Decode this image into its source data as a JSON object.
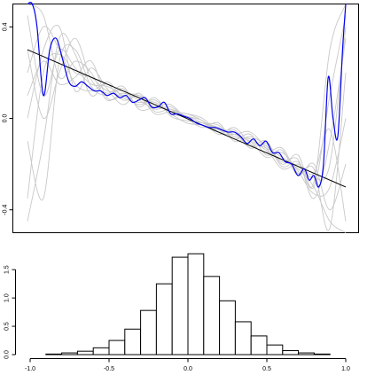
{
  "chart_data": [
    {
      "type": "line",
      "title": "",
      "xlabel": "",
      "ylabel": "",
      "xlim": [
        -1.0,
        1.0
      ],
      "ylim": [
        -0.5,
        0.5
      ],
      "grid": false,
      "y_ticks": [
        {
          "value": -0.4,
          "label": "-0.4"
        },
        {
          "value": 0.0,
          "label": "0.0"
        },
        {
          "value": 0.4,
          "label": "0.4"
        }
      ],
      "colors": {
        "fit": "#0000ee",
        "reference": "#000000",
        "samples": "#c8c8c8"
      },
      "reference_line": {
        "x": [
          -1.0,
          1.0
        ],
        "y": [
          0.3,
          -0.3
        ]
      },
      "fit_curve": {
        "x": [
          -1.0,
          -0.97,
          -0.94,
          -0.9,
          -0.86,
          -0.82,
          -0.78,
          -0.74,
          -0.7,
          -0.66,
          -0.62,
          -0.58,
          -0.54,
          -0.5,
          -0.46,
          -0.42,
          -0.38,
          -0.34,
          -0.3,
          -0.26,
          -0.22,
          -0.18,
          -0.14,
          -0.1,
          -0.06,
          -0.02,
          0.02,
          0.06,
          0.1,
          0.14,
          0.18,
          0.22,
          0.26,
          0.3,
          0.34,
          0.38,
          0.42,
          0.46,
          0.5,
          0.54,
          0.58,
          0.62,
          0.66,
          0.7,
          0.74,
          0.77,
          0.8,
          0.83,
          0.86,
          0.89,
          0.92,
          0.95,
          0.98,
          1.0
        ],
        "y": [
          0.5,
          0.52,
          0.4,
          0.1,
          0.3,
          0.35,
          0.26,
          0.16,
          0.14,
          0.16,
          0.14,
          0.12,
          0.12,
          0.1,
          0.11,
          0.09,
          0.1,
          0.07,
          0.08,
          0.09,
          0.05,
          0.05,
          0.07,
          0.02,
          0.02,
          0.01,
          0.0,
          -0.02,
          -0.03,
          -0.04,
          -0.04,
          -0.05,
          -0.06,
          -0.06,
          -0.08,
          -0.11,
          -0.09,
          -0.12,
          -0.1,
          -0.15,
          -0.15,
          -0.19,
          -0.2,
          -0.25,
          -0.22,
          -0.27,
          -0.25,
          -0.3,
          -0.2,
          0.18,
          0.0,
          -0.08,
          0.3,
          0.5
        ]
      },
      "sample_curves": [
        {
          "x": [
            -1.0,
            -0.9,
            -0.8,
            -0.7,
            -0.6,
            -0.5,
            -0.4,
            -0.3,
            -0.2,
            -0.1,
            0.0,
            0.1,
            0.2,
            0.3,
            0.4,
            0.5,
            0.6,
            0.7,
            0.8,
            0.9,
            1.0
          ],
          "y": [
            0.45,
            0.1,
            0.3,
            0.22,
            0.15,
            0.14,
            0.1,
            0.06,
            0.08,
            0.02,
            0.01,
            -0.02,
            -0.05,
            -0.07,
            -0.1,
            -0.13,
            -0.17,
            -0.21,
            -0.26,
            -0.2,
            0.4
          ]
        },
        {
          "x": [
            -1.0,
            -0.9,
            -0.8,
            -0.7,
            -0.6,
            -0.5,
            -0.4,
            -0.3,
            -0.2,
            -0.1,
            0.0,
            0.1,
            0.2,
            0.3,
            0.4,
            0.5,
            0.6,
            0.7,
            0.8,
            0.9,
            1.0
          ],
          "y": [
            -0.35,
            0.2,
            0.28,
            0.2,
            0.18,
            0.12,
            0.12,
            0.09,
            0.05,
            0.04,
            0.0,
            -0.03,
            -0.04,
            -0.08,
            -0.09,
            -0.14,
            -0.18,
            -0.22,
            -0.3,
            -0.45,
            -0.5
          ]
        },
        {
          "x": [
            -1.0,
            -0.9,
            -0.8,
            -0.7,
            -0.6,
            -0.5,
            -0.4,
            -0.3,
            -0.2,
            -0.1,
            0.0,
            0.1,
            0.2,
            0.3,
            0.4,
            0.5,
            0.6,
            0.7,
            0.8,
            0.9,
            1.0
          ],
          "y": [
            0.2,
            0.4,
            0.3,
            0.15,
            0.12,
            0.15,
            0.08,
            0.1,
            0.06,
            0.03,
            0.02,
            -0.01,
            -0.06,
            -0.05,
            -0.12,
            -0.1,
            -0.2,
            -0.16,
            -0.3,
            0.1,
            0.45
          ]
        },
        {
          "x": [
            -1.0,
            -0.9,
            -0.8,
            -0.7,
            -0.6,
            -0.5,
            -0.4,
            -0.3,
            -0.2,
            -0.1,
            0.0,
            0.1,
            0.2,
            0.3,
            0.4,
            0.5,
            0.6,
            0.7,
            0.8,
            0.9,
            1.0
          ],
          "y": [
            -0.1,
            -0.35,
            0.25,
            0.3,
            0.14,
            0.1,
            0.13,
            0.05,
            0.09,
            0.01,
            -0.01,
            -0.02,
            -0.03,
            -0.09,
            -0.07,
            -0.16,
            -0.14,
            -0.25,
            -0.2,
            -0.4,
            -0.2
          ]
        },
        {
          "x": [
            -1.0,
            -0.9,
            -0.8,
            -0.7,
            -0.6,
            -0.5,
            -0.4,
            -0.3,
            -0.2,
            -0.1,
            0.0,
            0.1,
            0.2,
            0.3,
            0.4,
            0.5,
            0.6,
            0.7,
            0.8,
            0.9,
            1.0
          ],
          "y": [
            0.5,
            0.45,
            0.18,
            0.25,
            0.2,
            0.08,
            0.11,
            0.08,
            0.04,
            0.05,
            0.0,
            -0.04,
            -0.02,
            -0.1,
            -0.08,
            -0.12,
            -0.19,
            -0.18,
            -0.35,
            -0.1,
            0.35
          ]
        },
        {
          "x": [
            -1.0,
            -0.9,
            -0.8,
            -0.7,
            -0.6,
            -0.5,
            -0.4,
            -0.3,
            -0.2,
            -0.1,
            0.0,
            0.1,
            0.2,
            0.3,
            0.4,
            0.5,
            0.6,
            0.7,
            0.8,
            0.9,
            1.0
          ],
          "y": [
            0.0,
            0.3,
            0.4,
            0.12,
            0.22,
            0.13,
            0.06,
            0.11,
            0.03,
            0.04,
            0.01,
            -0.01,
            -0.07,
            -0.04,
            -0.11,
            -0.15,
            -0.13,
            -0.24,
            -0.22,
            -0.48,
            0.2
          ]
        },
        {
          "x": [
            -1.0,
            -0.9,
            -0.8,
            -0.7,
            -0.6,
            -0.5,
            -0.4,
            -0.3,
            -0.2,
            -0.1,
            0.0,
            0.1,
            0.2,
            0.3,
            0.4,
            0.5,
            0.6,
            0.7,
            0.8,
            0.9,
            1.0
          ],
          "y": [
            -0.45,
            -0.1,
            0.35,
            0.28,
            0.1,
            0.16,
            0.09,
            0.07,
            0.07,
            0.02,
            -0.02,
            -0.03,
            -0.05,
            -0.06,
            -0.13,
            -0.11,
            -0.21,
            -0.19,
            -0.28,
            0.3,
            0.5
          ]
        },
        {
          "x": [
            -1.0,
            -0.9,
            -0.8,
            -0.7,
            -0.6,
            -0.5,
            -0.4,
            -0.3,
            -0.2,
            -0.1,
            0.0,
            0.1,
            0.2,
            0.3,
            0.4,
            0.5,
            0.6,
            0.7,
            0.8,
            0.9,
            1.0
          ],
          "y": [
            0.3,
            0.0,
            0.2,
            0.35,
            0.17,
            0.11,
            0.14,
            0.04,
            0.05,
            0.06,
            0.0,
            -0.02,
            -0.04,
            -0.08,
            -0.1,
            -0.17,
            -0.15,
            -0.23,
            -0.33,
            -0.3,
            0.0
          ]
        },
        {
          "x": [
            -1.0,
            -0.9,
            -0.8,
            -0.7,
            -0.6,
            -0.5,
            -0.4,
            -0.3,
            -0.2,
            -0.1,
            0.0,
            0.1,
            0.2,
            0.3,
            0.4,
            0.5,
            0.6,
            0.7,
            0.8,
            0.9,
            1.0
          ],
          "y": [
            0.1,
            0.25,
            0.15,
            0.18,
            0.25,
            0.09,
            0.1,
            0.1,
            0.02,
            0.03,
            0.02,
            0.0,
            -0.06,
            -0.07,
            -0.06,
            -0.13,
            -0.22,
            -0.2,
            -0.24,
            -0.05,
            -0.45
          ]
        }
      ]
    },
    {
      "type": "bar",
      "title": "",
      "xlabel": "",
      "ylabel": "",
      "xlim": [
        -1.0,
        1.0
      ],
      "ylim": [
        0,
        1.8
      ],
      "grid": false,
      "x_ticks": [
        {
          "value": -1.0,
          "label": "-1.0"
        },
        {
          "value": -0.5,
          "label": "-0.5"
        },
        {
          "value": 0.0,
          "label": "0.0"
        },
        {
          "value": 0.5,
          "label": "0.5"
        },
        {
          "value": 1.0,
          "label": "1.0"
        }
      ],
      "y_ticks": [
        {
          "value": 0.0,
          "label": "0.0"
        },
        {
          "value": 0.5,
          "label": "0.5"
        },
        {
          "value": 1.0,
          "label": "1.0"
        },
        {
          "value": 1.5,
          "label": "1.5"
        }
      ],
      "bin_width": 0.1,
      "bins": [
        {
          "x0": -0.9,
          "x1": -0.8,
          "density": 0.01
        },
        {
          "x0": -0.8,
          "x1": -0.7,
          "density": 0.03
        },
        {
          "x0": -0.7,
          "x1": -0.6,
          "density": 0.06
        },
        {
          "x0": -0.6,
          "x1": -0.5,
          "density": 0.12
        },
        {
          "x0": -0.5,
          "x1": -0.4,
          "density": 0.25
        },
        {
          "x0": -0.4,
          "x1": -0.3,
          "density": 0.45
        },
        {
          "x0": -0.3,
          "x1": -0.2,
          "density": 0.78
        },
        {
          "x0": -0.2,
          "x1": -0.1,
          "density": 1.25
        },
        {
          "x0": -0.1,
          "x1": 0.0,
          "density": 1.72
        },
        {
          "x0": 0.0,
          "x1": 0.1,
          "density": 1.78
        },
        {
          "x0": 0.1,
          "x1": 0.2,
          "density": 1.38
        },
        {
          "x0": 0.2,
          "x1": 0.3,
          "density": 0.95
        },
        {
          "x0": 0.3,
          "x1": 0.4,
          "density": 0.58
        },
        {
          "x0": 0.4,
          "x1": 0.5,
          "density": 0.33
        },
        {
          "x0": 0.5,
          "x1": 0.6,
          "density": 0.17
        },
        {
          "x0": 0.6,
          "x1": 0.7,
          "density": 0.07
        },
        {
          "x0": 0.7,
          "x1": 0.8,
          "density": 0.03
        },
        {
          "x0": 0.8,
          "x1": 0.9,
          "density": 0.01
        }
      ]
    }
  ]
}
